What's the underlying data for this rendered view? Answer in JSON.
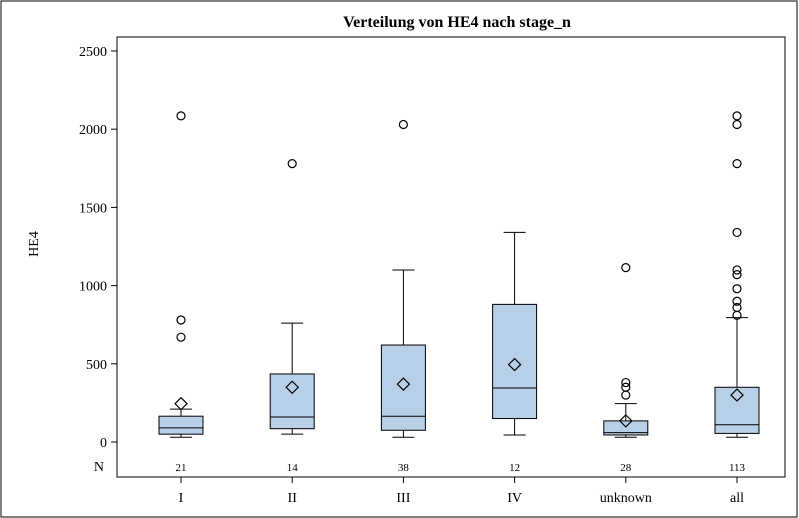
{
  "chart_data": {
    "type": "box",
    "title": "Verteilung von HE4 nach stage_n",
    "xlabel": "",
    "ylabel": "HE4",
    "ylim": [
      -80,
      2550
    ],
    "yticks": [
      0,
      500,
      1000,
      1500,
      2000,
      2500
    ],
    "n_header": "N",
    "box_color": "#b8cfe8",
    "line_color": "#000000",
    "categories": [
      "I",
      "II",
      "III",
      "IV",
      "unknown",
      "all"
    ],
    "counts": [
      "21",
      "14",
      "38",
      "12",
      "28",
      "113"
    ],
    "boxes": [
      {
        "whisker_low": 30,
        "q1": 50,
        "median": 90,
        "q3": 165,
        "whisker_high": 210,
        "mean": 245,
        "outliers": [
          670,
          780,
          2085
        ]
      },
      {
        "whisker_low": 50,
        "q1": 85,
        "median": 160,
        "q3": 435,
        "whisker_high": 760,
        "mean": 350,
        "outliers": [
          1780
        ]
      },
      {
        "whisker_low": 30,
        "q1": 75,
        "median": 165,
        "q3": 620,
        "whisker_high": 1100,
        "mean": 370,
        "outliers": [
          2030
        ]
      },
      {
        "whisker_low": 45,
        "q1": 150,
        "median": 345,
        "q3": 880,
        "whisker_high": 1340,
        "mean": 495,
        "outliers": []
      },
      {
        "whisker_low": 30,
        "q1": 45,
        "median": 60,
        "q3": 135,
        "whisker_high": 245,
        "mean": 135,
        "outliers": [
          300,
          350,
          380,
          1115
        ]
      },
      {
        "whisker_low": 30,
        "q1": 55,
        "median": 110,
        "q3": 350,
        "whisker_high": 795,
        "mean": 300,
        "outliers": [
          810,
          860,
          900,
          980,
          1070,
          1100,
          1340,
          1780,
          2030,
          2085
        ]
      }
    ]
  }
}
